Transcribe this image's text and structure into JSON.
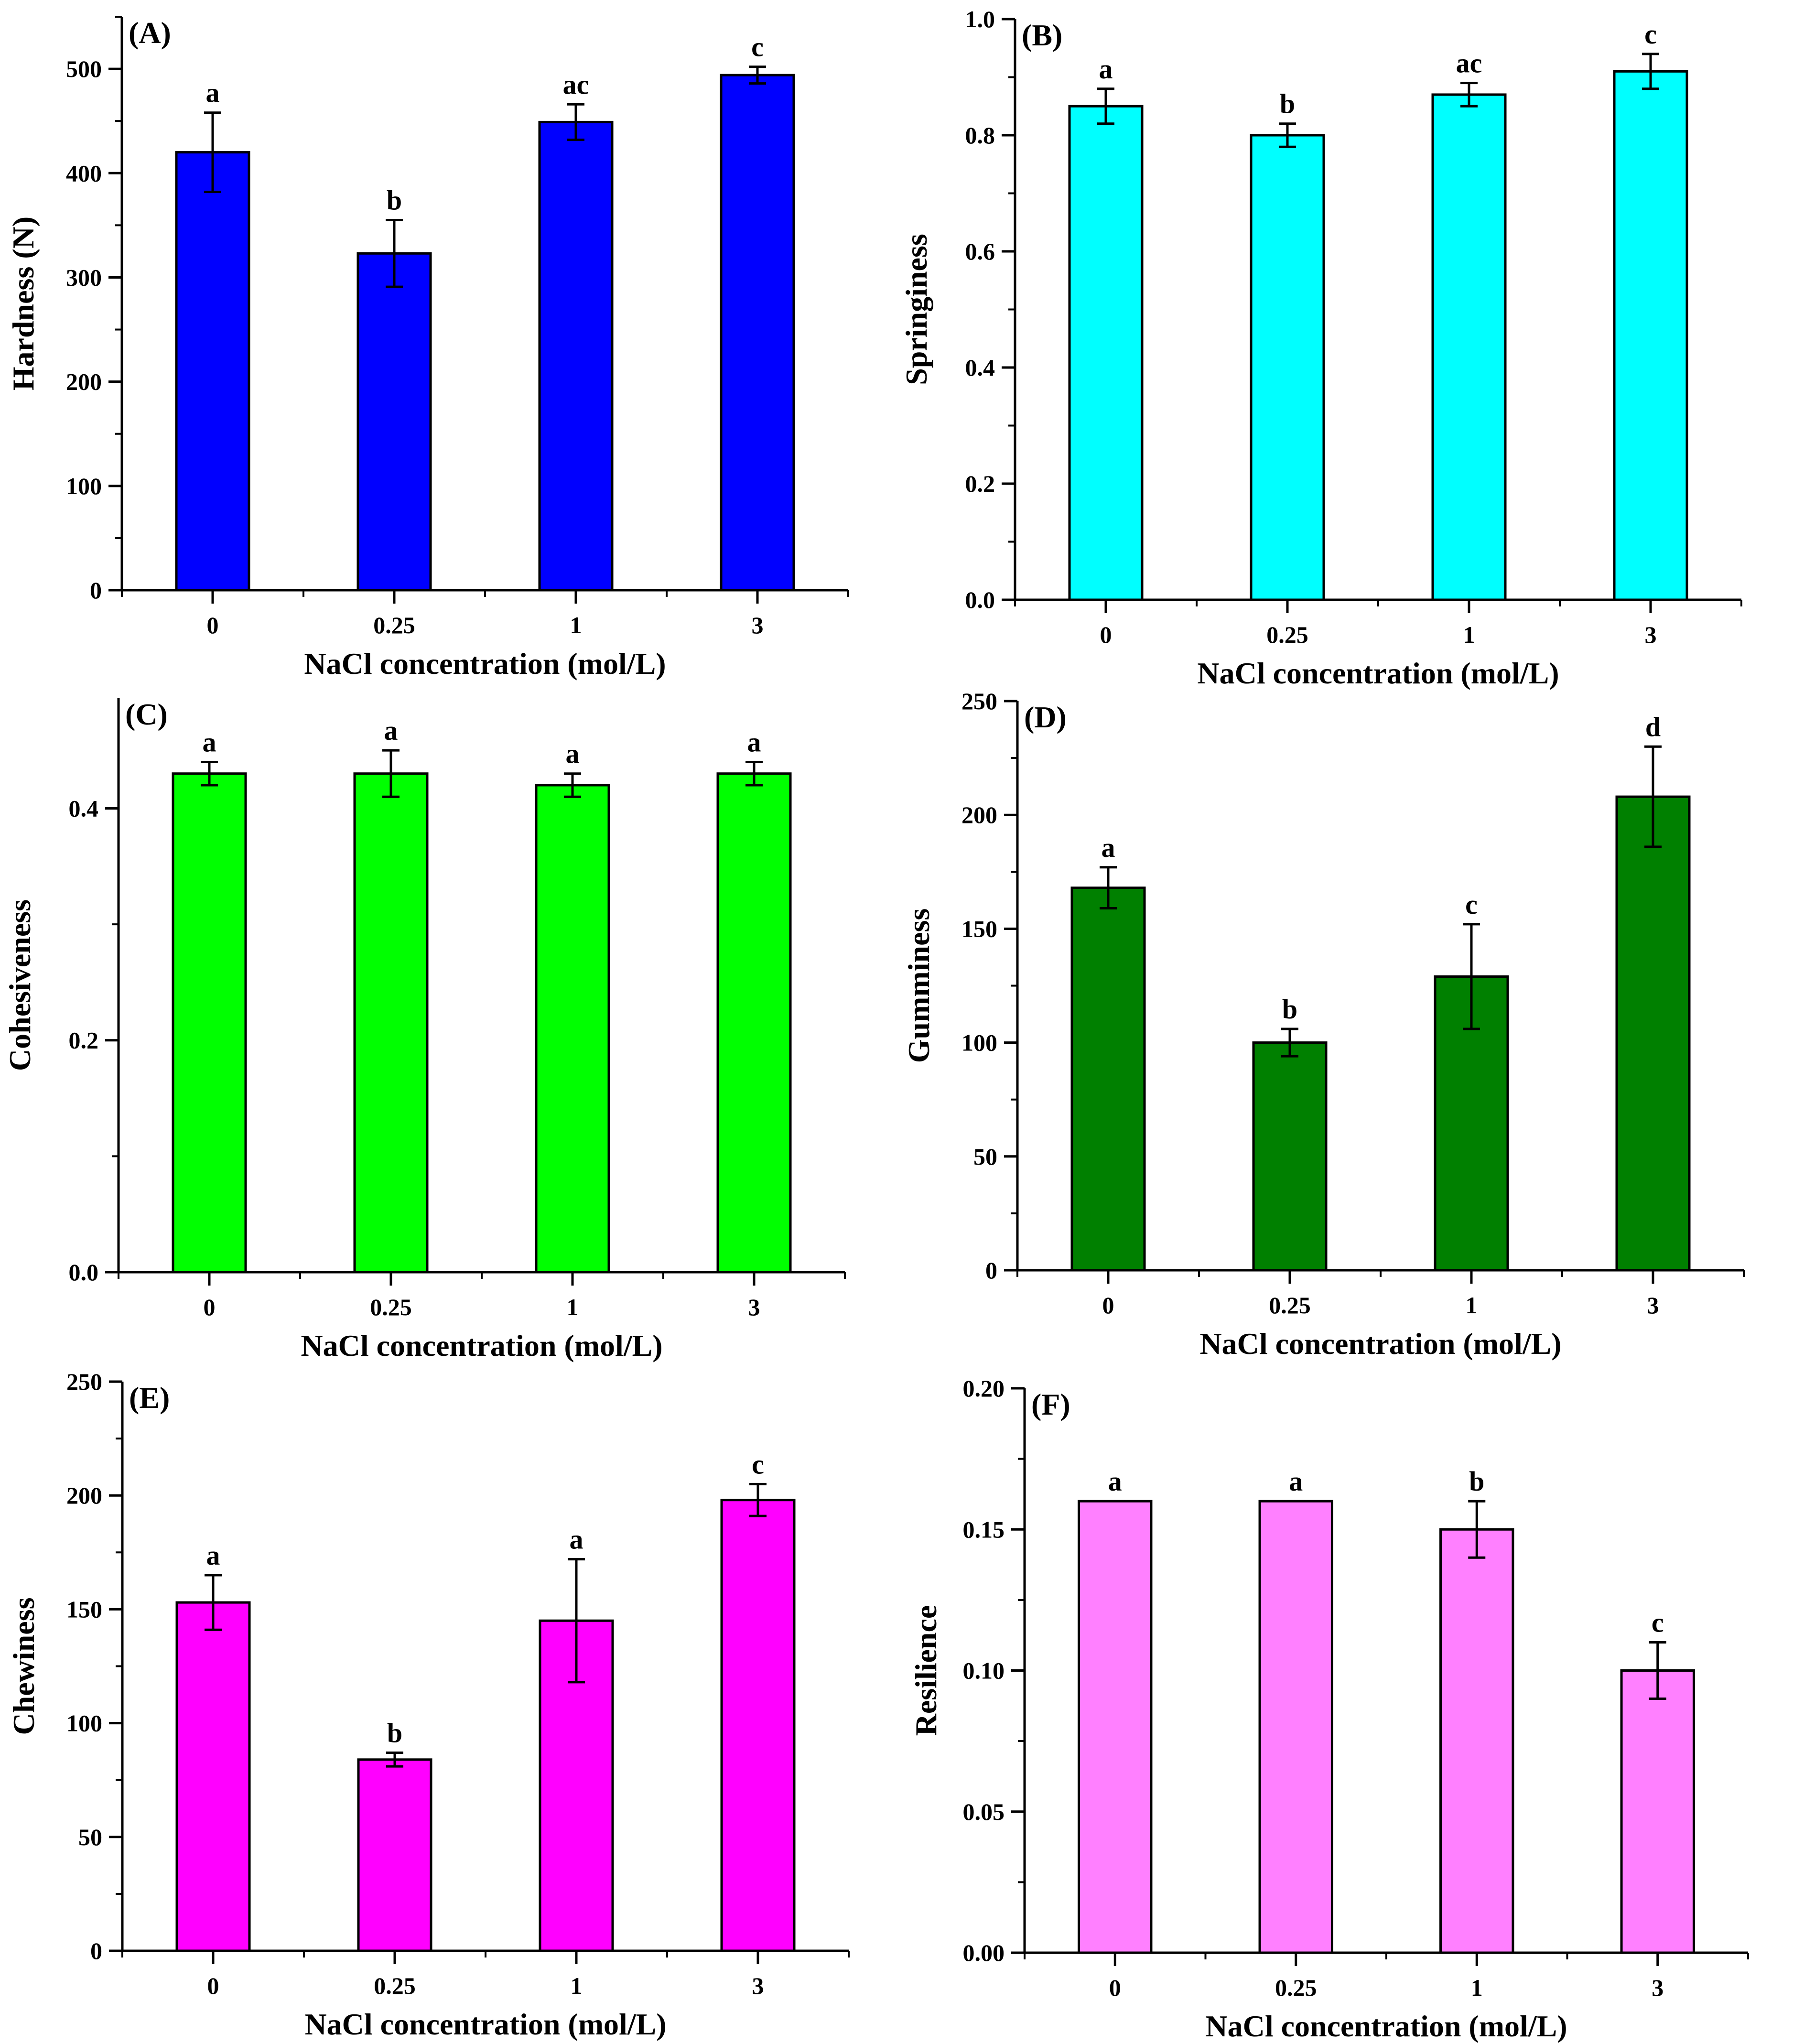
{
  "chart_data": [
    {
      "type": "bar",
      "panel_label": "(A)",
      "categories": [
        "0",
        "0.25",
        "1",
        "3"
      ],
      "values": [
        420,
        323,
        449,
        494
      ],
      "errors": [
        38,
        32,
        17,
        8
      ],
      "sig_letters": [
        "a",
        "b",
        "ac",
        "c"
      ],
      "xlabel": "NaCl concentration (mol/L)",
      "ylabel": "Hardness (N)",
      "ylim": [
        0,
        550
      ],
      "yticks": [
        0,
        100,
        200,
        300,
        400,
        500
      ],
      "ytick_labels": [
        "0",
        "100",
        "200",
        "300",
        "400",
        "500"
      ],
      "minor_ytick_step": 50,
      "bar_color": "#0000FF",
      "grid": false
    },
    {
      "type": "bar",
      "panel_label": "(B)",
      "categories": [
        "0",
        "0.25",
        "1",
        "3"
      ],
      "values": [
        0.85,
        0.8,
        0.87,
        0.91
      ],
      "errors": [
        0.03,
        0.02,
        0.02,
        0.03
      ],
      "sig_letters": [
        "a",
        "b",
        "ac",
        "c"
      ],
      "xlabel": "NaCl concentration (mol/L)",
      "ylabel": "Springiness",
      "ylim": [
        0,
        1.0
      ],
      "yticks": [
        0,
        0.2,
        0.4,
        0.6,
        0.8,
        1.0
      ],
      "ytick_labels": [
        "0.0",
        "0.2",
        "0.4",
        "0.6",
        "0.8",
        "1.0"
      ],
      "minor_ytick_step": 0.1,
      "bar_color": "#00FFFF",
      "grid": false
    },
    {
      "type": "bar",
      "panel_label": "(C)",
      "categories": [
        "0",
        "0.25",
        "1",
        "3"
      ],
      "values": [
        0.43,
        0.43,
        0.42,
        0.43
      ],
      "errors": [
        0.01,
        0.02,
        0.01,
        0.01
      ],
      "sig_letters": [
        "a",
        "a",
        "a",
        "a"
      ],
      "xlabel": "NaCl concentration (mol/L)",
      "ylabel": "Cohesiveness",
      "ylim": [
        0,
        0.495
      ],
      "yticks": [
        0,
        0.2,
        0.4
      ],
      "ytick_labels": [
        "0.0",
        "0.2",
        "0.4"
      ],
      "minor_ytick_step": 0.1,
      "bar_color": "#00FF00",
      "grid": false
    },
    {
      "type": "bar",
      "panel_label": "(D)",
      "categories": [
        "0",
        "0.25",
        "1",
        "3"
      ],
      "values": [
        168,
        100,
        129,
        208
      ],
      "errors": [
        9,
        6,
        23,
        22
      ],
      "sig_letters": [
        "a",
        "b",
        "c",
        "d"
      ],
      "xlabel": "NaCl concentration (mol/L)",
      "ylabel": "Gumminess",
      "ylim": [
        0,
        250
      ],
      "yticks": [
        0,
        50,
        100,
        150,
        200,
        250
      ],
      "ytick_labels": [
        "0",
        "50",
        "100",
        "150",
        "200",
        "250"
      ],
      "minor_ytick_step": 25,
      "bar_color": "#008000",
      "grid": false
    },
    {
      "type": "bar",
      "panel_label": "(E)",
      "categories": [
        "0",
        "0.25",
        "1",
        "3"
      ],
      "values": [
        153,
        84,
        145,
        198
      ],
      "errors": [
        12,
        3,
        27,
        7
      ],
      "sig_letters": [
        "a",
        "b",
        "a",
        "c"
      ],
      "xlabel": "NaCl concentration (mol/L)",
      "ylabel": "Chewiness",
      "ylim": [
        0,
        250
      ],
      "yticks": [
        0,
        50,
        100,
        150,
        200,
        250
      ],
      "ytick_labels": [
        "0",
        "50",
        "100",
        "150",
        "200",
        "250"
      ],
      "minor_ytick_step": 25,
      "bar_color": "#FF00FF",
      "grid": false
    },
    {
      "type": "bar",
      "panel_label": "(F)",
      "categories": [
        "0",
        "0.25",
        "1",
        "3"
      ],
      "values": [
        0.16,
        0.16,
        0.15,
        0.1
      ],
      "errors": [
        0,
        0,
        0.01,
        0.01
      ],
      "sig_letters": [
        "a",
        "a",
        "b",
        "c"
      ],
      "xlabel": "NaCl concentration (mol/L)",
      "ylabel": "Resilience",
      "ylim": [
        0,
        0.2
      ],
      "yticks": [
        0,
        0.05,
        0.1,
        0.15,
        0.2
      ],
      "ytick_labels": [
        "0.00",
        "0.05",
        "0.10",
        "0.15",
        "0.20"
      ],
      "minor_ytick_step": 0.025,
      "bar_color": "#FF80FF",
      "grid": false
    }
  ]
}
